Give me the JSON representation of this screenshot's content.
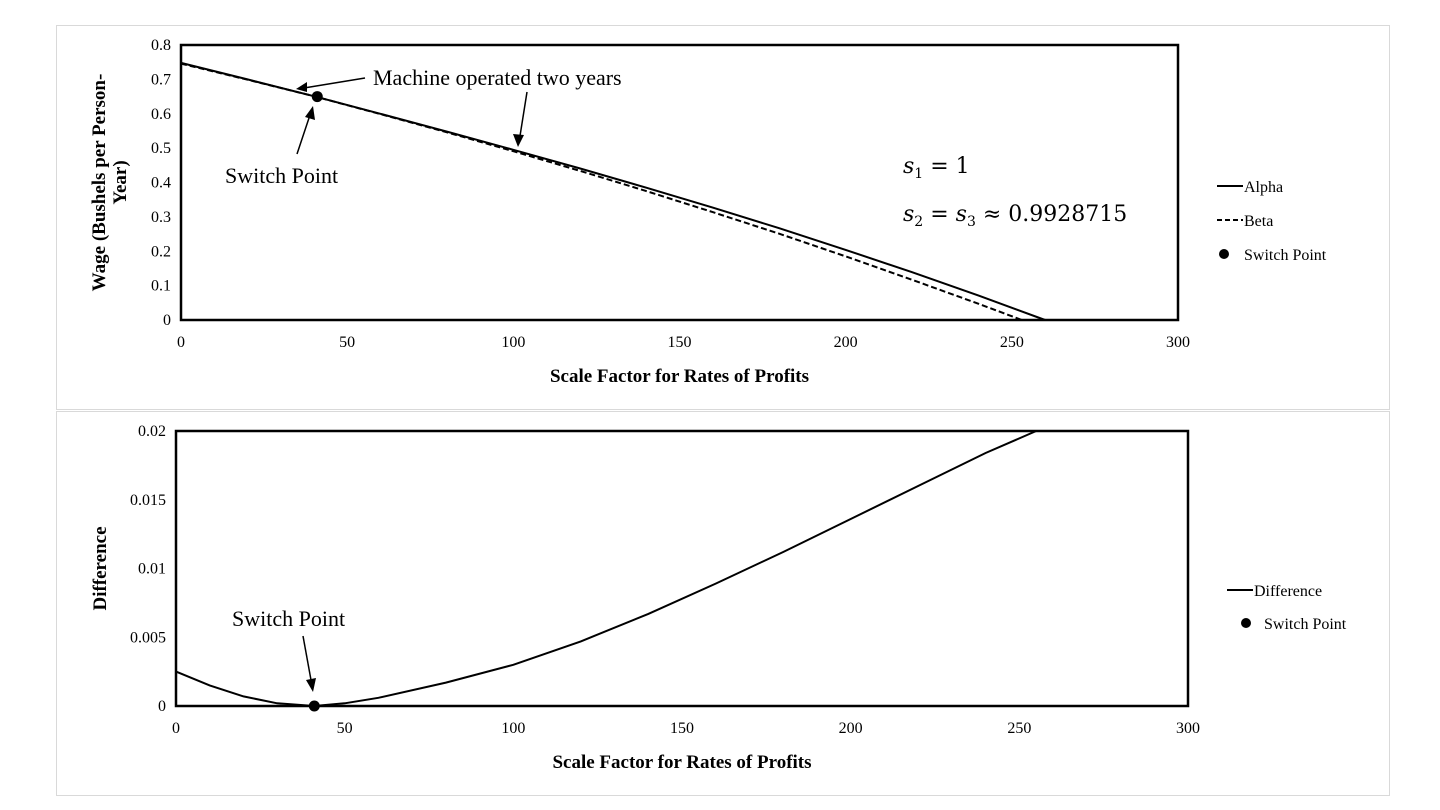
{
  "chart_data": [
    {
      "type": "line",
      "title": "",
      "xlabel": "Scale Factor for Rates of Profits",
      "ylabel": "Wage (Bushels per Person-Year)",
      "xlim": [
        0,
        300
      ],
      "ylim": [
        0,
        0.8
      ],
      "x_ticks": [
        "0",
        "50",
        "100",
        "150",
        "200",
        "250",
        "300"
      ],
      "y_ticks": [
        "0",
        "0.1",
        "0.2",
        "0.3",
        "0.4",
        "0.5",
        "0.6",
        "0.7",
        "0.8"
      ],
      "grid": false,
      "legend_position": "right",
      "series": [
        {
          "name": "Alpha",
          "style": "solid",
          "x": [
            0,
            20,
            40,
            60,
            80,
            100,
            120,
            140,
            160,
            180,
            200,
            220,
            240,
            260
          ],
          "y": [
            0.748,
            0.7,
            0.651,
            0.6,
            0.548,
            0.495,
            0.441,
            0.385,
            0.327,
            0.267,
            0.204,
            0.139,
            0.071,
            0.0
          ]
        },
        {
          "name": "Beta",
          "style": "dashed",
          "x": [
            0,
            20,
            40,
            60,
            80,
            100,
            120,
            140,
            160,
            180,
            200,
            220,
            240,
            253
          ],
          "y": [
            0.746,
            0.699,
            0.651,
            0.599,
            0.546,
            0.491,
            0.434,
            0.375,
            0.314,
            0.251,
            0.185,
            0.117,
            0.047,
            0.0
          ]
        }
      ],
      "points": [
        {
          "name": "Switch Point",
          "x": 41,
          "y": 0.65
        }
      ],
      "annotations": [
        {
          "text": "Machine operated two years"
        },
        {
          "text": "Switch Point"
        }
      ],
      "math_text": {
        "s1_base": "s",
        "s1_sub": "1",
        "s1_rest": " = 1",
        "s2_base": "s",
        "s2_sub": "2",
        "s2_mid": " = ",
        "s3_base": "s",
        "s3_sub": "3",
        "s3_rest": " ≈ 0.9928715"
      }
    },
    {
      "type": "line",
      "title": "",
      "xlabel": "Scale Factor for Rates of Profits",
      "ylabel": "Difference",
      "xlim": [
        0,
        300
      ],
      "ylim": [
        0,
        0.02
      ],
      "x_ticks": [
        "0",
        "50",
        "100",
        "150",
        "200",
        "250",
        "300"
      ],
      "y_ticks": [
        "0",
        "0.005",
        "0.01",
        "0.015",
        "0.02"
      ],
      "grid": false,
      "legend_position": "right",
      "series": [
        {
          "name": "Difference",
          "style": "solid",
          "x": [
            0,
            10,
            20,
            30,
            41,
            50,
            60,
            80,
            100,
            120,
            140,
            160,
            180,
            200,
            220,
            240,
            255
          ],
          "y": [
            0.0025,
            0.0015,
            0.0007,
            0.0002,
            0.0,
            0.0002,
            0.0006,
            0.0017,
            0.003,
            0.0047,
            0.0067,
            0.0089,
            0.0112,
            0.0136,
            0.016,
            0.0184,
            0.02
          ]
        }
      ],
      "points": [
        {
          "name": "Switch Point",
          "x": 41,
          "y": 0.0
        }
      ],
      "annotations": [
        {
          "text": "Switch Point"
        }
      ]
    }
  ]
}
